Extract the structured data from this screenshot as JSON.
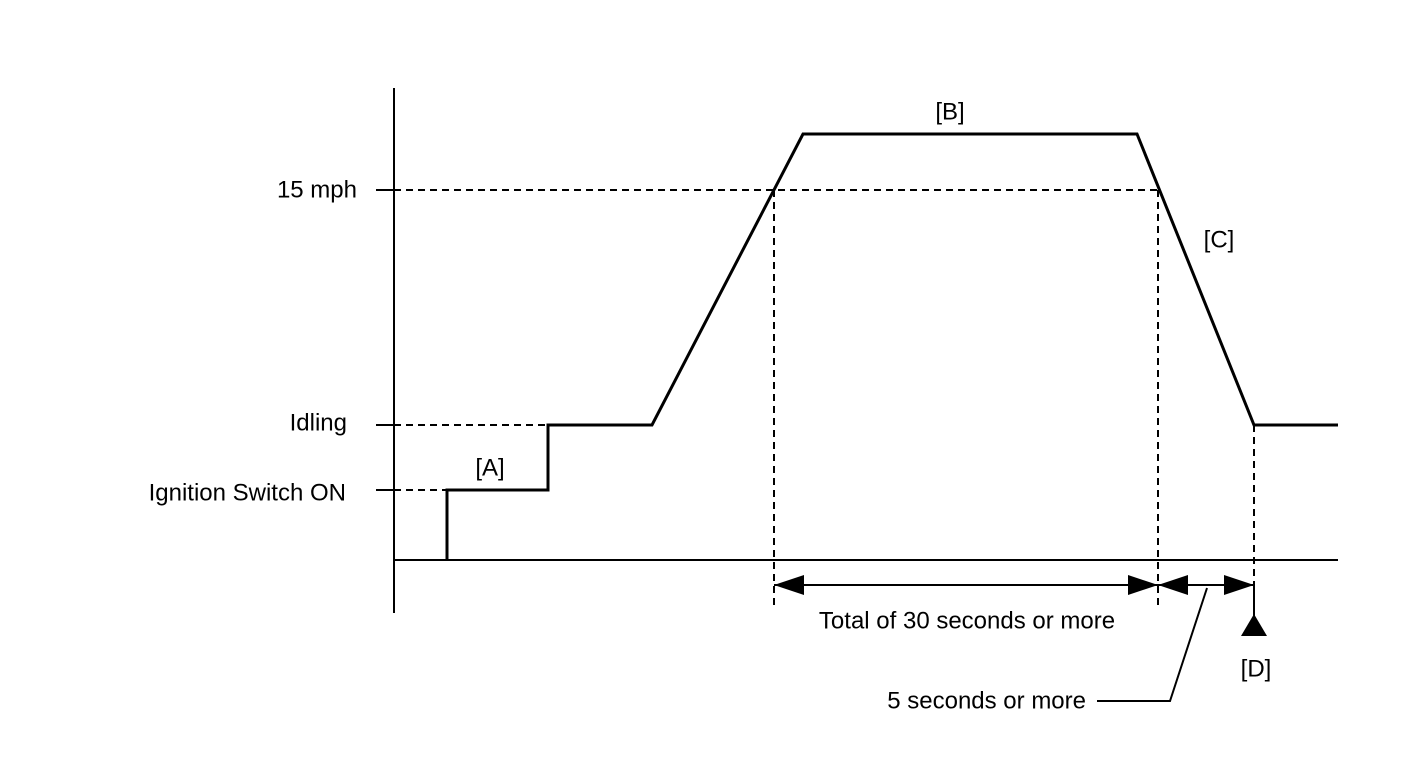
{
  "labels": {
    "speed": "15 mph",
    "idling": "Idling",
    "ignition": "Ignition Switch ON"
  },
  "phases": {
    "a": "[A]",
    "b": "[B]",
    "c": "[C]",
    "d": "[D]"
  },
  "durations": {
    "total": "Total of 30 seconds or more",
    "hold": "5 seconds or more"
  }
}
